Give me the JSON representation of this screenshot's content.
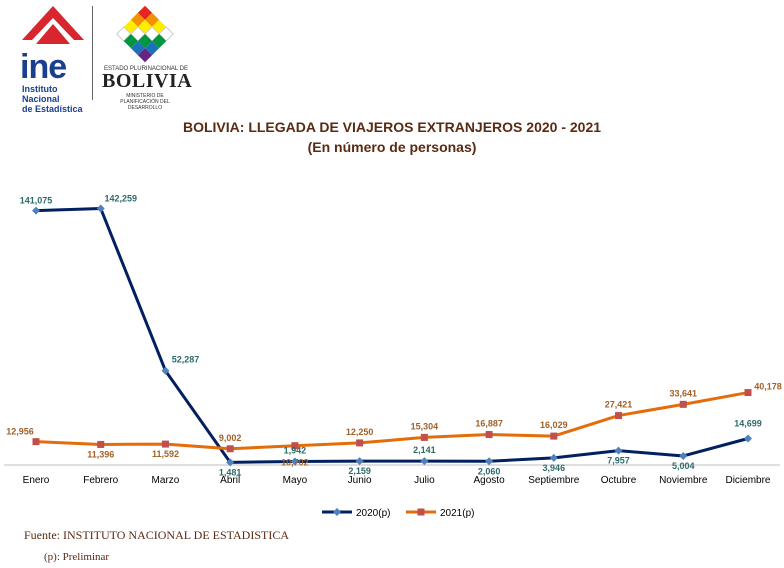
{
  "header": {
    "ine_logo_text": "ine",
    "ine_subtitle": [
      "Instituto Nacional",
      "de Estadística"
    ],
    "bolivia_small": "ESTADO PLURINACIONAL DE",
    "bolivia_word": "BOLIVIA",
    "ministry": [
      "MINISTERIO DE",
      "PLANIFICACIÓN DEL DESARROLLO"
    ]
  },
  "footer": {
    "source": "Fuente: INSTITUTO NACIONAL DE ESTADISTICA",
    "note": "(p): Preliminar"
  },
  "chart_data": {
    "type": "line",
    "title": "BOLIVIA: LLEGADA DE VIAJEROS EXTRANJEROS 2020 - 2021",
    "subtitle": "(En número de personas)",
    "categories": [
      "Enero",
      "Febrero",
      "Marzo",
      "Abril",
      "Mayo",
      "Junio",
      "Julio",
      "Agosto",
      "Septiembre",
      "Octubre",
      "Noviembre",
      "Diciembre"
    ],
    "series": [
      {
        "name": "2020(p)",
        "color": "#002060",
        "marker_color": "#4f81bd",
        "values": [
          141075,
          142259,
          52287,
          1481,
          1942,
          2159,
          2141,
          2060,
          3946,
          7957,
          5004,
          14699
        ],
        "labels": [
          "141,075",
          "142,259",
          "52,287",
          "1,481",
          "1,942",
          "2,159",
          "2,141",
          "2,060",
          "3,946",
          "7,957",
          "5,004",
          "14,699"
        ]
      },
      {
        "name": "2021(p)",
        "color": "#e46c0a",
        "marker_color": "#c0504d",
        "values": [
          12956,
          11396,
          11592,
          9002,
          10702,
          12250,
          15304,
          16887,
          16029,
          27421,
          33641,
          40178
        ],
        "labels": [
          "12,956",
          "11,396",
          "11,592",
          "9,002",
          "10,702",
          "12,250",
          "15,304",
          "16,887",
          "16,029",
          "27,421",
          "33,641",
          "40,178"
        ]
      }
    ],
    "ylim": [
      0,
      160000
    ],
    "grid": false,
    "legend": "bottom"
  }
}
